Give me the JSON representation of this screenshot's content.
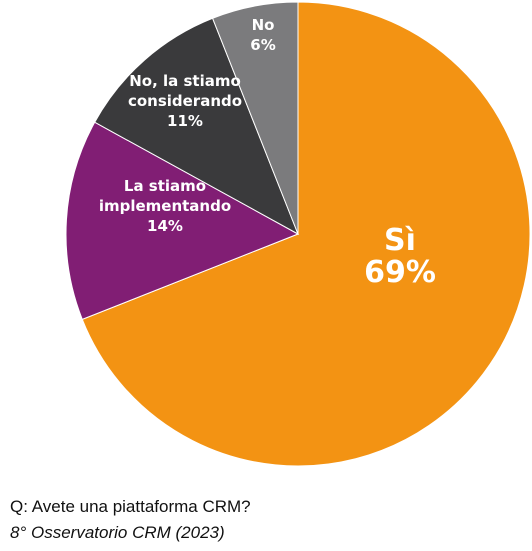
{
  "chart_data": {
    "type": "pie",
    "start": "12 o'clock",
    "direction": "clockwise",
    "slices": [
      {
        "label_lines": [
          "Sì"
        ],
        "value": 69,
        "value_text": "69%",
        "color": "#F39313"
      },
      {
        "label_lines": [
          "La stiamo",
          "implementando"
        ],
        "value": 14,
        "value_text": "14%",
        "color": "#811E74"
      },
      {
        "label_lines": [
          "No, la stiamo",
          "considerando"
        ],
        "value": 11,
        "value_text": "11%",
        "color": "#3A3A3C"
      },
      {
        "label_lines": [
          "No"
        ],
        "value": 6,
        "value_text": "6%",
        "color": "#7B7B7D"
      }
    ]
  },
  "caption": {
    "question": "Q: Avete una piattaforma CRM?",
    "source": "8° Osservatorio CRM (2023)"
  }
}
